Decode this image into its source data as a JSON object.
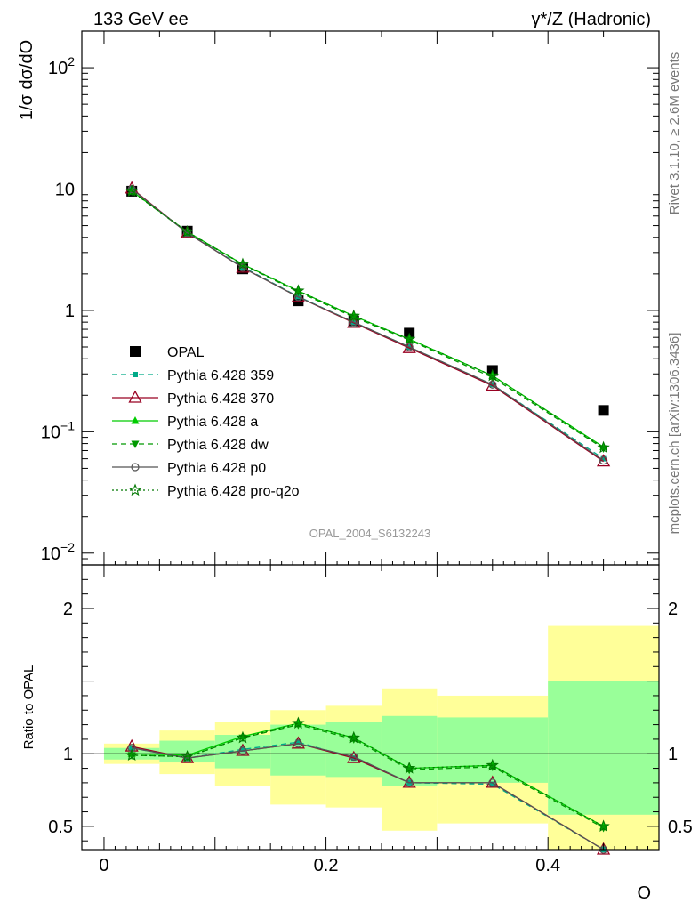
{
  "header": {
    "left": "133 GeV ee",
    "right": "γ*/Z (Hadronic)"
  },
  "side_labels": {
    "rivet": "Rivet 3.1.10, ≥ 2.6M events",
    "mcplots": "mcplots.cern.ch [arXiv:1306.3436]"
  },
  "watermark": "OPAL_2004_S6132243",
  "colors": {
    "band_outer": "#ffff99",
    "band_inner": "#99ff99",
    "opal": "#000000",
    "p359": "#00aa88",
    "p370": "#990022",
    "pa": "#00cc00",
    "pdw": "#009900",
    "pp0": "#555555",
    "pq2o": "#007700"
  },
  "chart_data": [
    {
      "type": "scatter",
      "panel": "main",
      "ylabel": "1/σ dσ/dO",
      "yscale": "log",
      "ylim": [
        0.008,
        200
      ],
      "xlim": [
        -0.02,
        0.5
      ],
      "y_ticks": [
        {
          "value": 0.01,
          "base": "10",
          "exp": "−2"
        },
        {
          "value": 0.1,
          "base": "10",
          "exp": "−1"
        },
        {
          "value": 1,
          "base": "1",
          "exp": ""
        },
        {
          "value": 10,
          "base": "10",
          "exp": ""
        },
        {
          "value": 100,
          "base": "10",
          "exp": "2"
        }
      ],
      "x": [
        0.025,
        0.075,
        0.125,
        0.175,
        0.225,
        0.275,
        0.35,
        0.45
      ],
      "legend_position": "middle-left",
      "series": [
        {
          "name": "OPAL",
          "key": "opal",
          "marker": "square",
          "line": "none",
          "values": [
            9.6,
            4.5,
            2.2,
            1.2,
            0.82,
            0.65,
            0.32,
            0.15
          ]
        },
        {
          "name": "Pythia 6.428 359",
          "key": "p359",
          "marker": "smallsquare",
          "line": "dashed",
          "values": [
            10.0,
            4.35,
            2.28,
            1.3,
            0.8,
            0.5,
            0.245,
            0.06
          ]
        },
        {
          "name": "Pythia 6.428 370",
          "key": "p370",
          "marker": "triangle-open",
          "line": "solid",
          "values": [
            10.1,
            4.35,
            2.25,
            1.29,
            0.79,
            0.49,
            0.24,
            0.057
          ]
        },
        {
          "name": "Pythia 6.428 a",
          "key": "pa",
          "marker": "triangle",
          "line": "solid",
          "values": [
            9.6,
            4.45,
            2.4,
            1.45,
            0.9,
            0.58,
            0.29,
            0.075
          ]
        },
        {
          "name": "Pythia 6.428 dw",
          "key": "pdw",
          "marker": "triangle-down",
          "line": "dashed",
          "values": [
            9.55,
            4.4,
            2.38,
            1.42,
            0.88,
            0.57,
            0.28,
            0.073
          ]
        },
        {
          "name": "Pythia 6.428 p0",
          "key": "pp0",
          "marker": "circle-open",
          "line": "solid",
          "values": [
            10.0,
            4.35,
            2.25,
            1.29,
            0.8,
            0.5,
            0.245,
            0.058
          ]
        },
        {
          "name": "Pythia 6.428 pro-q2o",
          "key": "pq2o",
          "marker": "star",
          "line": "dotted",
          "values": [
            9.6,
            4.45,
            2.4,
            1.45,
            0.9,
            0.58,
            0.29,
            0.074
          ]
        }
      ]
    },
    {
      "type": "line",
      "panel": "ratio",
      "ylabel": "Ratio to OPAL",
      "xlabel": "O",
      "xlim": [
        -0.02,
        0.5
      ],
      "ylim": [
        0.34,
        2.3
      ],
      "y_ticks": [
        0.5,
        1,
        2
      ],
      "x_ticks": [
        0,
        0.2,
        0.4
      ],
      "bins": [
        {
          "x0": 0.0,
          "x1": 0.05,
          "outer": [
            0.93,
            1.07
          ],
          "inner": [
            0.96,
            1.04
          ]
        },
        {
          "x0": 0.05,
          "x1": 0.1,
          "outer": [
            0.86,
            1.16
          ],
          "inner": [
            0.94,
            1.09
          ]
        },
        {
          "x0": 0.1,
          "x1": 0.15,
          "outer": [
            0.78,
            1.22
          ],
          "inner": [
            0.9,
            1.13
          ]
        },
        {
          "x0": 0.15,
          "x1": 0.2,
          "outer": [
            0.65,
            1.3
          ],
          "inner": [
            0.85,
            1.2
          ]
        },
        {
          "x0": 0.2,
          "x1": 0.25,
          "outer": [
            0.63,
            1.33
          ],
          "inner": [
            0.84,
            1.22
          ]
        },
        {
          "x0": 0.25,
          "x1": 0.3,
          "outer": [
            0.47,
            1.45
          ],
          "inner": [
            0.78,
            1.26
          ]
        },
        {
          "x0": 0.3,
          "x1": 0.4,
          "outer": [
            0.52,
            1.4
          ],
          "inner": [
            0.8,
            1.25
          ]
        },
        {
          "x0": 0.4,
          "x1": 0.5,
          "outer": [
            0.34,
            1.88
          ],
          "inner": [
            0.58,
            1.5
          ]
        }
      ],
      "x": [
        0.025,
        0.075,
        0.125,
        0.175,
        0.225,
        0.275,
        0.35,
        0.45
      ],
      "series": [
        {
          "name": "Pythia 6.428 359",
          "key": "p359",
          "values": [
            1.04,
            0.97,
            1.03,
            1.08,
            0.97,
            0.8,
            0.79,
            0.34
          ]
        },
        {
          "name": "Pythia 6.428 370",
          "key": "p370",
          "values": [
            1.05,
            0.97,
            1.02,
            1.07,
            0.97,
            0.8,
            0.8,
            0.34
          ]
        },
        {
          "name": "Pythia 6.428 a",
          "key": "pa",
          "values": [
            1.0,
            0.99,
            1.12,
            1.21,
            1.11,
            0.9,
            0.92,
            0.5
          ]
        },
        {
          "name": "Pythia 6.428 dw",
          "key": "pdw",
          "values": [
            0.99,
            0.98,
            1.11,
            1.2,
            1.1,
            0.89,
            0.91,
            0.49
          ]
        },
        {
          "name": "Pythia 6.428 p0",
          "key": "pp0",
          "values": [
            1.04,
            0.97,
            1.02,
            1.07,
            0.98,
            0.8,
            0.8,
            0.34
          ]
        },
        {
          "name": "Pythia 6.428 pro-q2o",
          "key": "pq2o",
          "values": [
            0.99,
            0.98,
            1.11,
            1.21,
            1.11,
            0.9,
            0.92,
            0.5
          ]
        }
      ]
    }
  ]
}
